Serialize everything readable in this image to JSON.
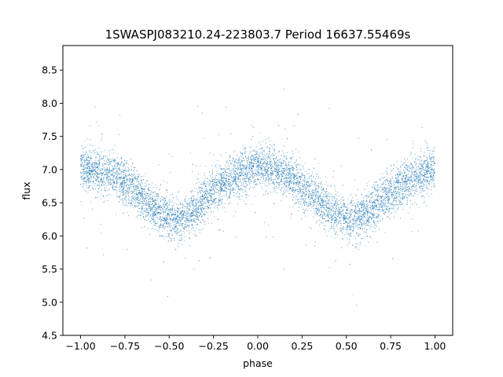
{
  "chart_data": {
    "type": "scatter",
    "title": "1SWASPJ083210.24-223803.7 Period 16637.55469s",
    "xlabel": "phase",
    "ylabel": "flux",
    "xlim": [
      -1.1,
      1.1
    ],
    "ylim": [
      4.5,
      8.87
    ],
    "xticks": [
      -1.0,
      -0.75,
      -0.5,
      -0.25,
      0.0,
      0.25,
      0.5,
      0.75,
      1.0
    ],
    "xtick_labels": [
      "−1.00",
      "−0.75",
      "−0.50",
      "−0.25",
      "0.00",
      "0.25",
      "0.50",
      "0.75",
      "1.00"
    ],
    "yticks": [
      4.5,
      5.0,
      5.5,
      6.0,
      6.5,
      7.0,
      7.5,
      8.0,
      8.5
    ],
    "ytick_labels": [
      "4.5",
      "5.0",
      "5.5",
      "6.0",
      "6.5",
      "7.0",
      "7.5",
      "8.0",
      "8.5"
    ],
    "grid": false,
    "marker_color": "#1f77b4",
    "series": [
      {
        "x": [
          -1.0,
          -0.9,
          -0.8,
          -0.7,
          -0.6,
          -0.5,
          -0.45,
          -0.4,
          -0.3,
          -0.2,
          -0.1,
          0.0,
          0.05,
          0.1,
          0.2,
          0.3,
          0.4,
          0.5,
          0.55,
          0.6,
          0.7,
          0.8,
          0.9,
          1.0
        ],
        "y": [
          7.02,
          6.98,
          6.9,
          6.72,
          6.45,
          6.25,
          6.22,
          6.3,
          6.55,
          6.78,
          6.95,
          7.03,
          7.02,
          6.98,
          6.85,
          6.65,
          6.4,
          6.25,
          6.22,
          6.3,
          6.52,
          6.75,
          6.92,
          7.02
        ]
      }
    ]
  }
}
